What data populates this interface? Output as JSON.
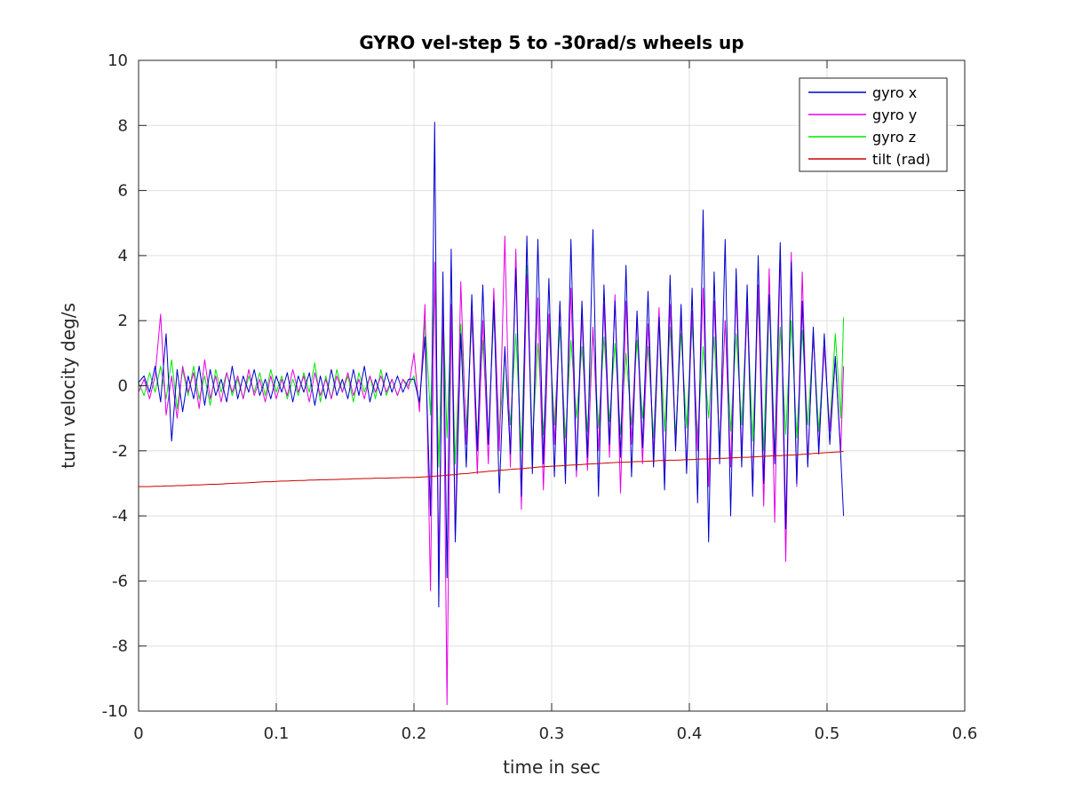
{
  "chart_data": {
    "type": "line",
    "title": "GYRO vel-step 5 to -30rad/s wheels up",
    "xlabel": "time in sec",
    "ylabel": "turn velocity deg/s",
    "xlim": [
      0,
      0.6
    ],
    "ylim": [
      -10,
      10
    ],
    "x_ticks": [
      0,
      0.1,
      0.2,
      0.3,
      0.4,
      0.5,
      0.6
    ],
    "x_tick_labels": [
      "0",
      "0.1",
      "0.2",
      "0.3",
      "0.4",
      "0.5",
      "0.6"
    ],
    "y_ticks": [
      -10,
      -8,
      -6,
      -4,
      -2,
      0,
      2,
      4,
      6,
      8,
      10
    ],
    "y_tick_labels": [
      "-10",
      "-8",
      "-6",
      "-4",
      "-2",
      "0",
      "2",
      "4",
      "6",
      "8",
      "10"
    ],
    "grid": true,
    "legend_position": "top-right",
    "x": [
      0.0,
      0.004,
      0.008,
      0.012,
      0.016,
      0.02,
      0.024,
      0.028,
      0.032,
      0.036,
      0.04,
      0.044,
      0.048,
      0.052,
      0.056,
      0.06,
      0.064,
      0.068,
      0.072,
      0.076,
      0.08,
      0.084,
      0.088,
      0.092,
      0.096,
      0.1,
      0.104,
      0.108,
      0.112,
      0.116,
      0.12,
      0.124,
      0.128,
      0.132,
      0.136,
      0.14,
      0.144,
      0.148,
      0.152,
      0.156,
      0.16,
      0.164,
      0.168,
      0.172,
      0.176,
      0.18,
      0.184,
      0.188,
      0.192,
      0.196,
      0.2,
      0.204,
      0.208,
      0.212,
      0.215,
      0.218,
      0.221,
      0.224,
      0.227,
      0.23,
      0.234,
      0.238,
      0.242,
      0.246,
      0.25,
      0.254,
      0.258,
      0.262,
      0.266,
      0.27,
      0.274,
      0.278,
      0.282,
      0.286,
      0.29,
      0.294,
      0.298,
      0.302,
      0.306,
      0.31,
      0.314,
      0.318,
      0.322,
      0.326,
      0.33,
      0.334,
      0.338,
      0.342,
      0.346,
      0.35,
      0.354,
      0.358,
      0.362,
      0.366,
      0.37,
      0.374,
      0.378,
      0.382,
      0.386,
      0.39,
      0.394,
      0.398,
      0.402,
      0.406,
      0.41,
      0.414,
      0.418,
      0.422,
      0.426,
      0.43,
      0.434,
      0.438,
      0.442,
      0.446,
      0.45,
      0.454,
      0.458,
      0.462,
      0.466,
      0.47,
      0.474,
      0.478,
      0.482,
      0.486,
      0.49,
      0.494,
      0.498,
      0.502,
      0.506,
      0.51,
      0.512
    ],
    "series": [
      {
        "name": "gyro x",
        "color": "#0000cc",
        "values": [
          0.1,
          0.3,
          -0.2,
          0.6,
          -0.5,
          1.6,
          -1.7,
          0.5,
          -0.8,
          0.3,
          -0.4,
          0.6,
          -0.6,
          0.5,
          -0.3,
          0.2,
          -0.5,
          0.6,
          -0.4,
          0.3,
          -0.2,
          0.5,
          -0.3,
          0.2,
          -0.4,
          0.3,
          -0.2,
          0.4,
          -0.5,
          0.3,
          -0.2,
          0.4,
          -0.6,
          0.3,
          -0.4,
          0.5,
          -0.3,
          0.2,
          -0.4,
          0.5,
          -0.3,
          0.6,
          -0.5,
          0.2,
          -0.3,
          0.4,
          -0.2,
          0.3,
          -0.2,
          0.2,
          0.2,
          -0.5,
          1.5,
          -4.0,
          8.1,
          -6.8,
          3.5,
          -5.9,
          4.2,
          -4.8,
          1.6,
          -2.5,
          2.8,
          -2.0,
          3.1,
          -1.8,
          2.6,
          -3.3,
          1.2,
          -2.1,
          3.6,
          -3.4,
          4.6,
          -2.7,
          4.5,
          -2.4,
          3.3,
          -2.8,
          2.6,
          -3.0,
          4.5,
          -2.6,
          2.6,
          -2.2,
          4.8,
          -3.4,
          3.1,
          -1.8,
          2.6,
          -2.2,
          3.7,
          -2.8,
          2.3,
          -1.9,
          2.9,
          -2.5,
          2.1,
          -3.2,
          3.4,
          -2.0,
          2.5,
          -2.7,
          3.0,
          -3.6,
          5.4,
          -4.8,
          3.5,
          -2.4,
          4.5,
          -4.0,
          3.6,
          -2.5,
          3.1,
          -3.4,
          4.0,
          -3.0,
          2.8,
          -2.4,
          4.4,
          -4.4,
          3.8,
          -3.0,
          2.6,
          -2.5,
          1.8,
          -2.1,
          1.6,
          -1.8,
          0.9,
          -2.2,
          -4.0
        ]
      },
      {
        "name": "gyro y",
        "color": "#e600e6",
        "values": [
          -0.2,
          0.2,
          -0.4,
          0.3,
          2.2,
          -0.9,
          0.3,
          -1.0,
          0.6,
          -0.2,
          0.4,
          -0.7,
          0.8,
          -0.4,
          0.3,
          -0.5,
          0.4,
          -0.2,
          0.3,
          -0.4,
          0.5,
          -0.3,
          0.2,
          -0.5,
          0.3,
          -0.4,
          0.2,
          -0.3,
          0.5,
          -0.2,
          0.3,
          -0.5,
          0.4,
          -0.3,
          0.2,
          -0.4,
          0.3,
          -0.2,
          0.4,
          -0.3,
          0.2,
          -0.4,
          0.3,
          -0.2,
          0.3,
          -0.2,
          0.2,
          -0.3,
          0.2,
          -0.1,
          1.0,
          -0.8,
          2.5,
          -6.3,
          3.8,
          -5.5,
          2.4,
          -9.8,
          2.5,
          -4.6,
          3.2,
          -1.8,
          2.3,
          -2.7,
          2.0,
          -2.4,
          3.0,
          -2.0,
          4.6,
          -2.5,
          4.2,
          -3.8,
          3.4,
          -2.1,
          2.7,
          -3.2,
          2.2,
          -1.8,
          2.5,
          -2.4,
          3.0,
          -2.8,
          2.2,
          -2.6,
          1.8,
          -2.0,
          2.5,
          -2.2,
          2.8,
          -3.3,
          2.6,
          -1.8,
          2.2,
          -2.4,
          1.9,
          -2.1,
          2.4,
          -2.8,
          2.5,
          -1.9,
          2.2,
          -2.6,
          2.3,
          -2.0,
          3.0,
          -3.1,
          2.6,
          -2.2,
          2.0,
          -2.5,
          2.9,
          -2.1,
          2.5,
          -3.2,
          3.1,
          -3.7,
          3.6,
          -4.2,
          4.2,
          -5.4,
          4.1,
          -3.1,
          3.5,
          -2.4,
          1.6,
          -1.9,
          1.2,
          -1.4,
          0.8,
          -2.0,
          0.6
        ]
      },
      {
        "name": "gyro z",
        "color": "#00e600",
        "values": [
          0.1,
          -0.3,
          0.4,
          -0.2,
          0.6,
          -0.4,
          0.8,
          -0.7,
          0.5,
          -0.3,
          0.6,
          -0.4,
          0.3,
          -0.6,
          0.5,
          -0.2,
          0.4,
          -0.3,
          0.2,
          -0.4,
          0.3,
          -0.2,
          0.4,
          -0.3,
          0.5,
          -0.2,
          0.3,
          -0.4,
          0.2,
          -0.3,
          0.4,
          -0.2,
          0.7,
          -0.5,
          0.3,
          -0.4,
          0.5,
          -0.2,
          0.3,
          -0.5,
          0.4,
          -0.2,
          0.3,
          -0.4,
          0.5,
          -0.3,
          0.2,
          -0.3,
          0.2,
          0.0,
          0.3,
          -0.6,
          2.0,
          -0.9,
          3.2,
          -2.5,
          2.6,
          -1.6,
          2.2,
          -2.4,
          1.9,
          -1.3,
          2.0,
          -1.7,
          1.4,
          -1.8,
          2.3,
          -1.5,
          1.0,
          -1.2,
          1.6,
          -2.0,
          3.7,
          -1.8,
          1.3,
          -1.5,
          1.9,
          -1.2,
          1.8,
          -1.6,
          1.4,
          -1.0,
          1.2,
          -1.4,
          1.8,
          -1.3,
          1.5,
          -1.1,
          1.3,
          -1.5,
          1.0,
          -1.2,
          1.4,
          -1.0,
          1.2,
          -1.6,
          2.2,
          -1.4,
          1.8,
          -1.5,
          1.6,
          -1.3,
          1.9,
          -1.6,
          1.2,
          -1.0,
          1.5,
          -1.8,
          2.0,
          -1.4,
          1.6,
          -1.2,
          2.4,
          -1.7,
          2.6,
          -2.0,
          3.4,
          -2.2,
          1.8,
          -1.5,
          2.0,
          -1.6,
          1.7,
          -1.2,
          1.5,
          -1.4,
          1.2,
          -1.3,
          1.6,
          -1.0,
          2.1
        ]
      },
      {
        "name": "tilt (rad)",
        "color": "#cc0000",
        "values": [
          -3.1,
          -3.1,
          -3.1,
          -3.09,
          -3.09,
          -3.08,
          -3.08,
          -3.07,
          -3.07,
          -3.06,
          -3.05,
          -3.05,
          -3.04,
          -3.03,
          -3.03,
          -3.02,
          -3.01,
          -3.0,
          -2.99,
          -2.99,
          -2.98,
          -2.97,
          -2.96,
          -2.95,
          -2.95,
          -2.94,
          -2.93,
          -2.93,
          -2.92,
          -2.91,
          -2.91,
          -2.9,
          -2.9,
          -2.89,
          -2.89,
          -2.88,
          -2.88,
          -2.87,
          -2.87,
          -2.86,
          -2.86,
          -2.85,
          -2.85,
          -2.84,
          -2.84,
          -2.84,
          -2.83,
          -2.83,
          -2.82,
          -2.82,
          -2.82,
          -2.81,
          -2.8,
          -2.79,
          -2.78,
          -2.77,
          -2.76,
          -2.75,
          -2.74,
          -2.73,
          -2.71,
          -2.7,
          -2.68,
          -2.66,
          -2.65,
          -2.63,
          -2.62,
          -2.6,
          -2.59,
          -2.57,
          -2.56,
          -2.55,
          -2.53,
          -2.52,
          -2.5,
          -2.49,
          -2.48,
          -2.47,
          -2.46,
          -2.45,
          -2.44,
          -2.43,
          -2.42,
          -2.41,
          -2.4,
          -2.39,
          -2.38,
          -2.37,
          -2.36,
          -2.35,
          -2.35,
          -2.34,
          -2.33,
          -2.33,
          -2.32,
          -2.31,
          -2.3,
          -2.3,
          -2.29,
          -2.29,
          -2.28,
          -2.27,
          -2.27,
          -2.26,
          -2.25,
          -2.25,
          -2.24,
          -2.23,
          -2.23,
          -2.22,
          -2.21,
          -2.2,
          -2.2,
          -2.19,
          -2.18,
          -2.17,
          -2.16,
          -2.15,
          -2.15,
          -2.14,
          -2.13,
          -2.12,
          -2.11,
          -2.1,
          -2.08,
          -2.07,
          -2.06,
          -2.05,
          -2.04,
          -2.03,
          -2.02
        ]
      }
    ]
  }
}
